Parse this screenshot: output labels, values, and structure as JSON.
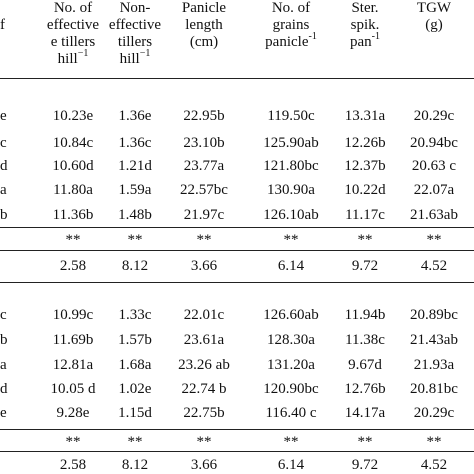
{
  "table": {
    "stub_header": [
      "f"
    ],
    "columns": [
      {
        "lines": [
          "No. of",
          "effective",
          "e tillers",
          "hill"
        ],
        "sup": "−1"
      },
      {
        "lines": [
          "Non-",
          "effective",
          "tillers",
          "hill"
        ],
        "sup": "−1"
      },
      {
        "lines": [
          "Panicle",
          "length",
          "(cm)"
        ],
        "sup": ""
      },
      {
        "lines": [
          "No. of",
          "grains",
          "panicle"
        ],
        "sup": "-1"
      },
      {
        "lines": [
          "Ster.",
          "spik.",
          "pan"
        ],
        "sup": "-1"
      },
      {
        "lines": [
          "TGW",
          "(g)"
        ],
        "sup": ""
      }
    ],
    "group1": {
      "stubs": [
        "e",
        "c",
        "d",
        "a",
        "b"
      ],
      "rows": [
        [
          "10.23e",
          "1.36e",
          "22.95b",
          "119.50c",
          "13.31a",
          "20.29c"
        ],
        [
          "10.84c",
          "1.36c",
          "23.10b",
          "125.90ab",
          "12.26b",
          "20.94bc"
        ],
        [
          "10.60d",
          "1.21d",
          "23.77a",
          "121.80bc",
          "12.37b",
          "20.63 c"
        ],
        [
          "11.80a",
          "1.59a",
          "22.57bc",
          "130.90a",
          "10.22d",
          "22.07a"
        ],
        [
          "11.36b",
          "1.48b",
          "21.97c",
          "126.10ab",
          "11.17c",
          "21.63ab"
        ]
      ],
      "significance": [
        "**",
        "**",
        "**",
        "**",
        "**",
        "**"
      ],
      "cv": [
        "2.58",
        "8.12",
        "3.66",
        "6.14",
        "9.72",
        "4.52"
      ]
    },
    "group2": {
      "stubs": [
        "c",
        "b",
        "a",
        "d",
        "e"
      ],
      "rows": [
        [
          "10.99c",
          "1.33c",
          "22.01c",
          "126.60ab",
          "11.94b",
          "20.89bc"
        ],
        [
          "11.69b",
          "1.57b",
          "23.61a",
          "128.30a",
          "11.38c",
          "21.43ab"
        ],
        [
          "12.81a",
          "1.68a",
          "23.26 ab",
          "131.20a",
          "9.67d",
          "21.93a"
        ],
        [
          "10.05 d",
          "1.02e",
          "22.74 b",
          "120.90bc",
          "12.76b",
          "20.81bc"
        ],
        [
          "9.28e",
          "1.15d",
          "22.75b",
          "116.40 c",
          "14.17a",
          "20.29c"
        ]
      ],
      "significance": [
        "**",
        "**",
        "**",
        "**",
        "**",
        "**"
      ],
      "cv": [
        "2.58",
        "8.12",
        "3.66",
        "6.14",
        "9.72",
        "4.52"
      ]
    }
  }
}
